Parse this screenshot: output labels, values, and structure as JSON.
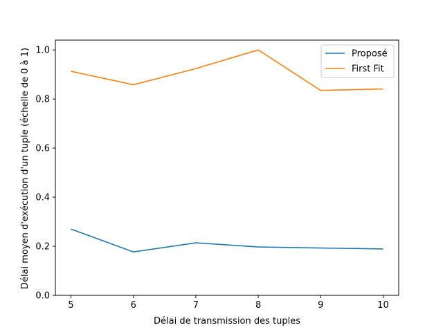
{
  "chart_data": {
    "type": "line",
    "x": [
      5,
      6,
      7,
      8,
      9,
      10
    ],
    "series": [
      {
        "name": "Proposé",
        "color": "#1f77b4",
        "values": [
          0.27,
          0.177,
          0.214,
          0.197,
          0.193,
          0.189
        ]
      },
      {
        "name": "First Fit",
        "color": "#ff7f0e",
        "values": [
          0.913,
          0.858,
          0.924,
          1.0,
          0.835,
          0.841
        ]
      }
    ],
    "xlabel": "Délai de transmission des tuples",
    "ylabel": "Délai moyen d'exécution d'un tuple (échelle de 0 à 1)",
    "xlim": [
      4.75,
      10.25
    ],
    "ylim": [
      0,
      1.04
    ],
    "xticks": [
      "5",
      "6",
      "7",
      "8",
      "9",
      "10"
    ],
    "yticks": [
      "0.0",
      "0.2",
      "0.4",
      "0.6",
      "0.8",
      "1.0"
    ],
    "grid": false,
    "legend_position": "top-right"
  }
}
